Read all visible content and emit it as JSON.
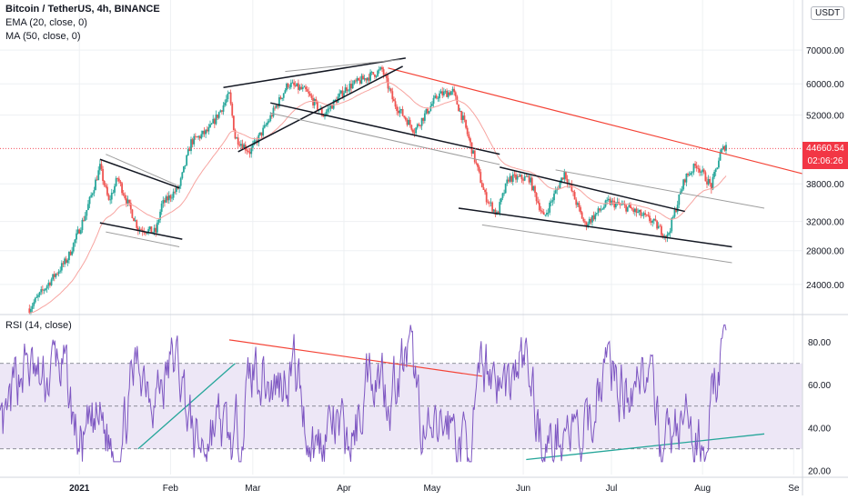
{
  "header": {
    "title": "Bitcoin / TetherUS, 4h, BINANCE",
    "ema": "EMA (20, close, 0)",
    "ma": "MA (50, close, 0)",
    "rsi": "RSI (14, close)",
    "currency": "USDT"
  },
  "last_price": {
    "value": "44660.54",
    "countdown": "02:06:26",
    "color": "#f23645"
  },
  "colors": {
    "up": "#26a69a",
    "down": "#ef5350",
    "rsi_line": "#7e57c2",
    "rsi_band": "#ede7f6",
    "trendline_dark": "#131722",
    "trendline_grey": "#9e9e9e",
    "resistance": "#f44336",
    "support_rsi": "#26a69a",
    "ema": "#f7a4a0",
    "grid": "#eef0f3"
  },
  "chart_data": [
    {
      "type": "candlestick",
      "title": "Bitcoin / TetherUS, 4h, BINANCE",
      "scale": "log",
      "ylim": [
        21000,
        88000
      ],
      "xlim": [
        "2020-12-05",
        "2021-09-04"
      ],
      "y_ticks": [
        "70000.00",
        "60000.00",
        "52000.00",
        "44660.54",
        "38000.00",
        "32000.00",
        "28000.00",
        "24000.00"
      ],
      "x_ticks": [
        {
          "label": "2021",
          "date": "2021-01-01",
          "bold": true
        },
        {
          "label": "Feb",
          "date": "2021-02-01"
        },
        {
          "label": "Mar",
          "date": "2021-03-01"
        },
        {
          "label": "Apr",
          "date": "2021-04-01"
        },
        {
          "label": "May",
          "date": "2021-05-01"
        },
        {
          "label": "Jun",
          "date": "2021-06-01"
        },
        {
          "label": "Jul",
          "date": "2021-07-01"
        },
        {
          "label": "Aug",
          "date": "2021-08-01"
        },
        {
          "label": "Se",
          "date": "2021-09-01"
        }
      ],
      "price_path": [
        [
          "2020-12-15",
          21500
        ],
        [
          "2020-12-20",
          23500
        ],
        [
          "2020-12-28",
          27000
        ],
        [
          "2021-01-03",
          33000
        ],
        [
          "2021-01-08",
          41000
        ],
        [
          "2021-01-11",
          35000
        ],
        [
          "2021-01-14",
          39000
        ],
        [
          "2021-01-21",
          31000
        ],
        [
          "2021-01-27",
          30500
        ],
        [
          "2021-01-29",
          34500
        ],
        [
          "2021-02-04",
          37500
        ],
        [
          "2021-02-08",
          46000
        ],
        [
          "2021-02-14",
          48500
        ],
        [
          "2021-02-21",
          57000
        ],
        [
          "2021-02-23",
          47000
        ],
        [
          "2021-02-28",
          44000
        ],
        [
          "2021-03-05",
          49000
        ],
        [
          "2021-03-13",
          60000
        ],
        [
          "2021-03-19",
          58000
        ],
        [
          "2021-03-25",
          52000
        ],
        [
          "2021-04-02",
          59000
        ],
        [
          "2021-04-14",
          64000
        ],
        [
          "2021-04-18",
          55000
        ],
        [
          "2021-04-25",
          48500
        ],
        [
          "2021-05-03",
          57000
        ],
        [
          "2021-05-08",
          58000
        ],
        [
          "2021-05-12",
          50000
        ],
        [
          "2021-05-19",
          36000
        ],
        [
          "2021-05-23",
          33000
        ],
        [
          "2021-05-27",
          39000
        ],
        [
          "2021-06-03",
          39000
        ],
        [
          "2021-06-08",
          32500
        ],
        [
          "2021-06-15",
          40000
        ],
        [
          "2021-06-22",
          31500
        ],
        [
          "2021-06-30",
          35000
        ],
        [
          "2021-07-07",
          34000
        ],
        [
          "2021-07-15",
          32000
        ],
        [
          "2021-07-20",
          29800
        ],
        [
          "2021-07-26",
          39000
        ],
        [
          "2021-07-30",
          41500
        ],
        [
          "2021-08-04",
          37500
        ],
        [
          "2021-08-07",
          43500
        ],
        [
          "2021-08-09",
          45600
        ]
      ],
      "series": [
        {
          "name": "EMA (20, close, 0)"
        },
        {
          "name": "MA (50, close, 0)"
        }
      ],
      "trendlines": [
        {
          "style": "resistance",
          "from": [
            "2021-04-16",
            64500
          ],
          "to": [
            "2021-09-04",
            39800
          ]
        },
        {
          "style": "dark",
          "from": [
            "2021-01-08",
            42500
          ],
          "to": [
            "2021-02-04",
            37300
          ]
        },
        {
          "style": "dark",
          "from": [
            "2021-01-08",
            31800
          ],
          "to": [
            "2021-02-05",
            29500
          ]
        },
        {
          "style": "grey",
          "from": [
            "2021-01-10",
            43500
          ],
          "to": [
            "2021-02-03",
            37800
          ]
        },
        {
          "style": "grey",
          "from": [
            "2021-01-10",
            30500
          ],
          "to": [
            "2021-02-04",
            28500
          ]
        },
        {
          "style": "dark",
          "from": [
            "2021-02-19",
            59000
          ],
          "to": [
            "2021-04-22",
            67500
          ]
        },
        {
          "style": "grey",
          "from": [
            "2021-03-12",
            63500
          ],
          "to": [
            "2021-04-20",
            67000
          ]
        },
        {
          "style": "dark",
          "from": [
            "2021-02-24",
            44000
          ],
          "to": [
            "2021-04-21",
            65000
          ]
        },
        {
          "style": "dark",
          "from": [
            "2021-03-07",
            55000
          ],
          "to": [
            "2021-05-24",
            43500
          ]
        },
        {
          "style": "grey",
          "from": [
            "2021-03-07",
            52500
          ],
          "to": [
            "2021-05-24",
            41500
          ]
        },
        {
          "style": "dark",
          "from": [
            "2021-05-24",
            41000
          ],
          "to": [
            "2021-07-26",
            33500
          ]
        },
        {
          "style": "dark",
          "from": [
            "2021-05-10",
            34000
          ],
          "to": [
            "2021-08-11",
            28500
          ]
        },
        {
          "style": "grey",
          "from": [
            "2021-06-12",
            40500
          ],
          "to": [
            "2021-08-22",
            34000
          ]
        },
        {
          "style": "grey",
          "from": [
            "2021-05-18",
            31500
          ],
          "to": [
            "2021-08-11",
            26500
          ]
        }
      ]
    },
    {
      "type": "line",
      "title": "RSI (14, close)",
      "ylim": [
        18,
        92
      ],
      "y_ticks": [
        80,
        60,
        40,
        20
      ],
      "bands": {
        "upper": 70,
        "middle": 50,
        "lower": 30
      },
      "trendlines": [
        {
          "style": "resistance",
          "from": [
            "2021-02-21",
            81
          ],
          "to": [
            "2021-05-18",
            64
          ]
        },
        {
          "style": "support",
          "from": [
            "2021-01-21",
            30
          ],
          "to": [
            "2021-02-23",
            70
          ]
        },
        {
          "style": "support",
          "from": [
            "2021-06-02",
            25
          ],
          "to": [
            "2021-08-22",
            37
          ]
        }
      ]
    }
  ]
}
